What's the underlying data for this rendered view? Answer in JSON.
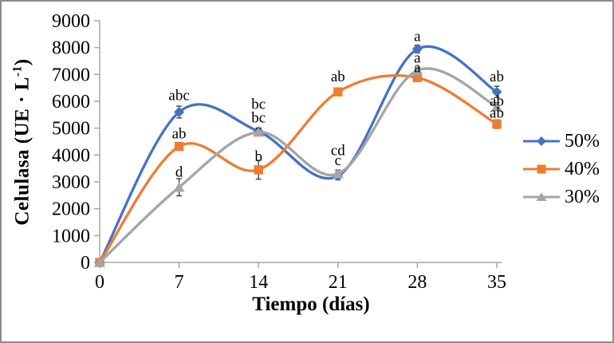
{
  "figure": {
    "background": "#ffffff",
    "border_color": "#8c8c8c"
  },
  "chart_data": {
    "type": "line",
    "line_style": "smooth",
    "title": "",
    "xlabel": "Tiempo (días)",
    "ylabel": "Celulasa (UE · L⁻¹)",
    "ylabel_main": "Celulasa (UE · L",
    "ylabel_sup": "-1",
    "ylabel_close": ")",
    "x": [
      0,
      7,
      14,
      21,
      28,
      35
    ],
    "xticks": [
      0,
      7,
      14,
      21,
      28,
      35
    ],
    "xlim": [
      0,
      35
    ],
    "ylim": [
      0,
      9000
    ],
    "yticks": [
      0,
      1000,
      2000,
      3000,
      4000,
      5000,
      6000,
      7000,
      8000,
      9000
    ],
    "grid": false,
    "legend_position": "right",
    "axis_color": "#a6a6a6",
    "error_bar_color": "#262626",
    "text_color": "#000000",
    "series": [
      {
        "name": "50%",
        "color": "#4472c4",
        "marker": "diamond",
        "values": [
          0,
          5600,
          4880,
          3220,
          7950,
          6350
        ],
        "errors": [
          0,
          220,
          130,
          140,
          140,
          210
        ],
        "letters": [
          "",
          "abc",
          "bc",
          "cd",
          "a",
          "ab"
        ]
      },
      {
        "name": "40%",
        "color": "#ed7d31",
        "marker": "square",
        "values": [
          0,
          4320,
          3450,
          6350,
          6880,
          5150
        ],
        "errors": [
          0,
          130,
          350,
          0,
          0,
          160
        ],
        "letters": [
          "",
          "ab",
          "b",
          "ab",
          "a",
          "ab"
        ]
      },
      {
        "name": "30%",
        "color": "#a5a5a5",
        "marker": "triangle",
        "values": [
          0,
          2800,
          4850,
          3300,
          7150,
          5800
        ],
        "errors": [
          0,
          320,
          130,
          140,
          110,
          150
        ],
        "letters": [
          "",
          "d",
          "bc",
          "c",
          "a",
          "ab"
        ]
      }
    ]
  }
}
